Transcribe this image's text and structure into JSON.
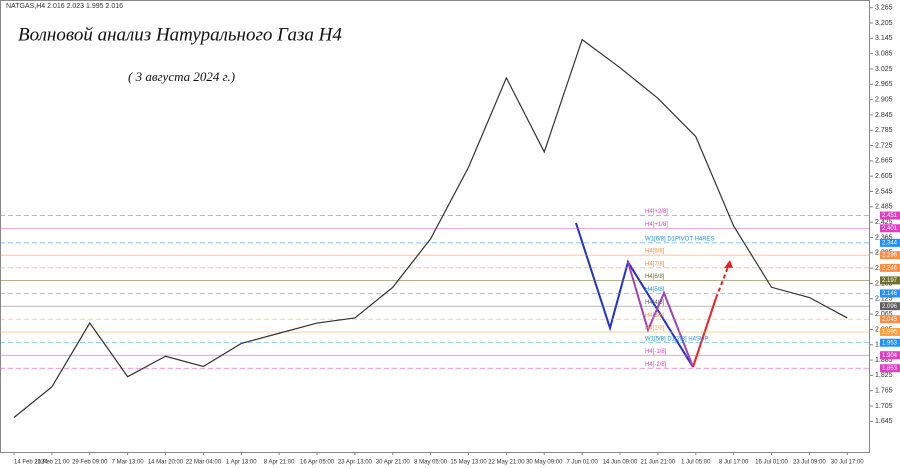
{
  "chart_data": {
    "type": "line",
    "header": "NATGAS,H4  2.016 2.023 1.995 2.016",
    "title": "Волновой анализ Натурального Газа H4",
    "subtitle": "( 3 августа 2024 г.)",
    "categories": [
      "14 Feb 2024",
      "21 Feb 21:00",
      "29 Feb 09:00",
      "7 Mar 13:00",
      "14 Mar 20:00",
      "22 Mar 04:00",
      "1 Apr 13:00",
      "8 Apr 21:00",
      "16 Apr 05:00",
      "23 Apr 13:00",
      "30 Apr 21:00",
      "8 May 05:00",
      "15 May 13:00",
      "22 May 21:00",
      "30 May 09:00",
      "7 Jun 01:00",
      "14 Jun 09:00",
      "21 Jun 21:00",
      "1 Jul 05:00",
      "8 Jul 17:00",
      "16 Jul 01:00",
      "23 Jul 09:00",
      "30 Jul 17:00"
    ],
    "values": [
      1.66,
      1.78,
      2.03,
      1.82,
      1.9,
      1.86,
      1.95,
      1.99,
      2.03,
      2.05,
      2.17,
      2.36,
      2.64,
      2.99,
      2.7,
      3.14,
      3.03,
      2.91,
      2.76,
      2.41,
      2.17,
      2.13,
      2.05
    ],
    "color": "#333333",
    "ylim": [
      1.525,
      3.295
    ],
    "yticks": [
      1.645,
      1.705,
      1.765,
      1.825,
      1.885,
      1.945,
      2.005,
      2.065,
      2.125,
      2.185,
      2.245,
      2.305,
      2.365,
      2.425,
      2.485,
      2.545,
      2.605,
      2.665,
      2.725,
      2.785,
      2.845,
      2.905,
      2.965,
      3.025,
      3.085,
      3.145,
      3.205,
      3.265
    ],
    "levels": [
      {
        "name": "H4[+2/8]",
        "value": 2.451,
        "color": "#e040c0"
      },
      {
        "name": "H4[+1/8]",
        "value": 2.401,
        "color": "#e040c0"
      },
      {
        "name": "W1[6/8] D1PIVOT H4RES",
        "value": 2.344,
        "color": "#1e90ff"
      },
      {
        "name": "H4[8/8]",
        "value": 2.296,
        "color": "#ff8c40"
      },
      {
        "name": "H4[7/8]",
        "value": 2.246,
        "color": "#ff8c40"
      },
      {
        "name": "H4[6/8]",
        "value": 2.197,
        "color": "#707030"
      },
      {
        "name": "H4[5/8]",
        "value": 2.146,
        "color": "#1e90ff"
      },
      {
        "name": "H4[4/8]",
        "value": 2.096,
        "color": "#606060"
      },
      {
        "name": "H4[3/8]",
        "value": 2.045,
        "color": "#ff8c40"
      },
      {
        "name": "H4[2/8]",
        "value": 1.995,
        "color": "#ffa040"
      },
      {
        "name": "W1[5/8] D1[2/8] H4SUP",
        "value": 1.953,
        "color": "#1e90ff"
      },
      {
        "name": "H4[-1/8]",
        "value": 1.904,
        "color": "#e040c0"
      },
      {
        "name": "H4[-2/8]",
        "value": 1.853,
        "color": "#e040c0"
      }
    ]
  }
}
